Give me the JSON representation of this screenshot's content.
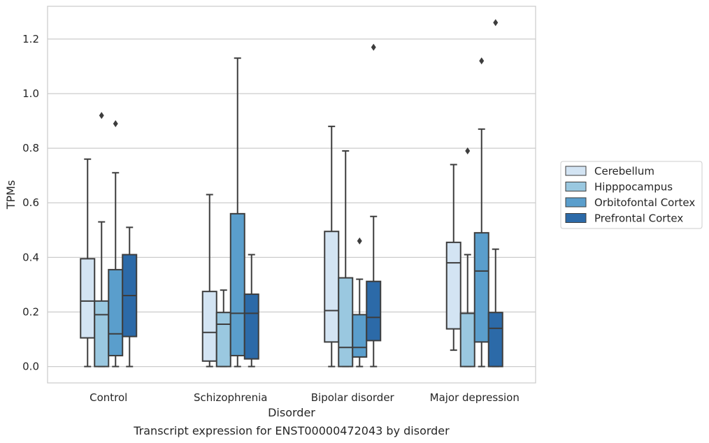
{
  "chart_data": {
    "type": "box",
    "caption": "Transcript expression for ENST00000472043 by disorder",
    "xlabel": "Disorder",
    "ylabel": "TPMs",
    "ylim": [
      -0.06,
      1.32
    ],
    "yticks": [
      "0.0",
      "0.2",
      "0.4",
      "0.6",
      "0.8",
      "1.0",
      "1.2"
    ],
    "ytick_values": [
      0,
      0.2,
      0.4,
      0.6,
      0.8,
      1.0,
      1.2
    ],
    "grid": true,
    "legend_position": "right",
    "categories": [
      "Control",
      "Schizophrenia",
      "Bipolar disorder",
      "Major depression"
    ],
    "series": [
      {
        "name": "Cerebellum",
        "color": "#d3e4f3",
        "boxes": [
          {
            "min": 0.0,
            "q1": 0.105,
            "median": 0.24,
            "q3": 0.395,
            "max": 0.76,
            "outliers": []
          },
          {
            "min": 0.0,
            "q1": 0.02,
            "median": 0.125,
            "q3": 0.275,
            "max": 0.63,
            "outliers": []
          },
          {
            "min": 0.0,
            "q1": 0.09,
            "median": 0.205,
            "q3": 0.495,
            "max": 0.88,
            "outliers": []
          },
          {
            "min": 0.06,
            "q1": 0.138,
            "median": 0.38,
            "q3": 0.455,
            "max": 0.74,
            "outliers": []
          }
        ]
      },
      {
        "name": "Hipppocampus",
        "color": "#9ac8e0",
        "boxes": [
          {
            "min": 0.0,
            "q1": 0.0,
            "median": 0.19,
            "q3": 0.24,
            "max": 0.53,
            "outliers": [
              0.92
            ]
          },
          {
            "min": 0.0,
            "q1": 0.0,
            "median": 0.155,
            "q3": 0.198,
            "max": 0.28,
            "outliers": []
          },
          {
            "min": 0.0,
            "q1": 0.0,
            "median": 0.07,
            "q3": 0.325,
            "max": 0.79,
            "outliers": []
          },
          {
            "min": 0.0,
            "q1": 0.0,
            "median": 0.195,
            "q3": 0.195,
            "max": 0.41,
            "outliers": [
              0.79
            ]
          }
        ]
      },
      {
        "name": "Orbitofontal Cortex",
        "color": "#5a9ecc",
        "boxes": [
          {
            "min": 0.0,
            "q1": 0.04,
            "median": 0.12,
            "q3": 0.355,
            "max": 0.71,
            "outliers": [
              0.89
            ]
          },
          {
            "min": 0.0,
            "q1": 0.04,
            "median": 0.195,
            "q3": 0.56,
            "max": 1.13,
            "outliers": []
          },
          {
            "min": 0.0,
            "q1": 0.035,
            "median": 0.07,
            "q3": 0.19,
            "max": 0.32,
            "outliers": [
              0.46
            ]
          },
          {
            "min": 0.0,
            "q1": 0.09,
            "median": 0.35,
            "q3": 0.49,
            "max": 0.87,
            "outliers": [
              1.12
            ]
          }
        ]
      },
      {
        "name": "Prefrontal Cortex",
        "color": "#2c6aa8",
        "boxes": [
          {
            "min": 0.0,
            "q1": 0.11,
            "median": 0.26,
            "q3": 0.41,
            "max": 0.51,
            "outliers": []
          },
          {
            "min": 0.0,
            "q1": 0.028,
            "median": 0.195,
            "q3": 0.265,
            "max": 0.41,
            "outliers": []
          },
          {
            "min": 0.0,
            "q1": 0.095,
            "median": 0.18,
            "q3": 0.312,
            "max": 0.55,
            "outliers": [
              1.17
            ]
          },
          {
            "min": 0.0,
            "q1": 0.0,
            "median": 0.14,
            "q3": 0.198,
            "max": 0.43,
            "outliers": [
              1.26
            ]
          }
        ]
      }
    ]
  }
}
